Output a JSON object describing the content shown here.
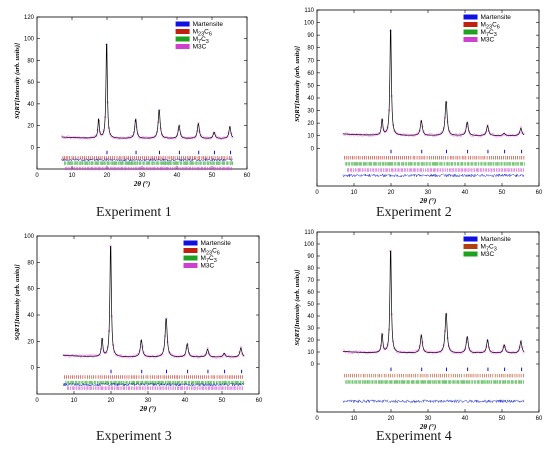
{
  "captions": [
    "Experiment 1",
    "Experiment 2",
    "Experiment 3",
    "Experiment 4"
  ],
  "chart_data": [
    {
      "type": "line",
      "xlabel": "2θ (°)",
      "ylabel": "SQRT[Intensity (arb. units)]",
      "xlim": [
        0,
        60
      ],
      "ylim": [
        -20,
        120
      ],
      "xticks": [
        0,
        10,
        20,
        30,
        40,
        50,
        60
      ],
      "yticks": [
        0,
        20,
        40,
        60,
        80,
        100,
        120
      ],
      "legend": [
        {
          "name": "Martensite",
          "color": "#1010e0"
        },
        {
          "name": "M23C6",
          "color": "#c02010"
        },
        {
          "name": "M7C3",
          "color": "#20a020"
        },
        {
          "name": "M3C",
          "color": "#d040d0"
        }
      ],
      "legend_position": "top-right",
      "grid": false,
      "series": [
        {
          "peaks": [
            [
              17.6,
              26
            ],
            [
              19.9,
              101
            ],
            [
              28.2,
              26
            ],
            [
              34.9,
              35
            ],
            [
              40.6,
              20
            ],
            [
              46.1,
              22
            ],
            [
              50.6,
              14
            ],
            [
              55.1,
              19
            ]
          ],
          "background": 8,
          "x_range": [
            7,
            56
          ]
        }
      ]
    },
    {
      "type": "line",
      "xlabel": "2θ (°)",
      "ylabel": "SQRT[Intensity (arb. units)]",
      "xlim": [
        0,
        60
      ],
      "ylim": [
        -30,
        110
      ],
      "xticks": [
        0,
        10,
        20,
        30,
        40,
        50,
        60
      ],
      "yticks": [
        0,
        10,
        20,
        30,
        40,
        50,
        60,
        70,
        80,
        90,
        100,
        110
      ],
      "legend": [
        {
          "name": "Martensite",
          "color": "#1010e0"
        },
        {
          "name": "M23C6",
          "color": "#c02010"
        },
        {
          "name": "M7C3",
          "color": "#20a020"
        },
        {
          "name": "M3C",
          "color": "#d040d0"
        }
      ],
      "legend_position": "top-right",
      "grid": false,
      "series": [
        {
          "peaks": [
            [
              17.6,
              23
            ],
            [
              19.9,
              100
            ],
            [
              28.2,
              22
            ],
            [
              34.9,
              38
            ],
            [
              40.6,
              21
            ],
            [
              46.1,
              18
            ],
            [
              50.6,
              12
            ],
            [
              55.1,
              16
            ]
          ],
          "background": 10,
          "x_range": [
            7,
            56
          ]
        }
      ]
    },
    {
      "type": "line",
      "xlabel": "2θ (°)",
      "ylabel": "SQRT[Intensity (arb. units)]",
      "xlim": [
        0,
        60
      ],
      "ylim": [
        -20,
        100
      ],
      "xticks": [
        0,
        10,
        20,
        30,
        40,
        50,
        60
      ],
      "yticks": [
        0,
        20,
        40,
        60,
        80,
        100
      ],
      "legend": [
        {
          "name": "Martensite",
          "color": "#1010e0"
        },
        {
          "name": "M23C6",
          "color": "#c02010"
        },
        {
          "name": "M7C3",
          "color": "#20a020"
        },
        {
          "name": "M3C",
          "color": "#d040d0"
        }
      ],
      "legend_position": "top-right",
      "grid": false,
      "series": [
        {
          "peaks": [
            [
              17.6,
              22
            ],
            [
              19.9,
              98
            ],
            [
              28.2,
              21
            ],
            [
              34.9,
              38
            ],
            [
              40.6,
              18
            ],
            [
              46.1,
              14
            ],
            [
              50.6,
              11
            ],
            [
              55.1,
              15
            ]
          ],
          "background": 8,
          "x_range": [
            7,
            56
          ]
        }
      ]
    },
    {
      "type": "line",
      "xlabel": "2θ (°)",
      "ylabel": "SQRT[Intensity (arb. units)]",
      "xlim": [
        0,
        60
      ],
      "ylim": [
        -40,
        110
      ],
      "xticks": [
        0,
        10,
        20,
        30,
        40,
        50,
        60
      ],
      "yticks": [
        0,
        10,
        20,
        30,
        40,
        50,
        60,
        70,
        80,
        90,
        100,
        110
      ],
      "legend": [
        {
          "name": "Martensite",
          "color": "#1010e0"
        },
        {
          "name": "M7C3",
          "color": "#b04010"
        },
        {
          "name": "M3C",
          "color": "#20a020"
        }
      ],
      "legend_position": "top-right",
      "grid": false,
      "series": [
        {
          "peaks": [
            [
              17.6,
              25
            ],
            [
              19.9,
              100
            ],
            [
              28.2,
              24
            ],
            [
              34.9,
              43
            ],
            [
              40.6,
              23
            ],
            [
              46.1,
              20
            ],
            [
              50.6,
              16
            ],
            [
              55.1,
              19
            ]
          ],
          "background": 9,
          "x_range": [
            7,
            56
          ]
        }
      ]
    }
  ]
}
